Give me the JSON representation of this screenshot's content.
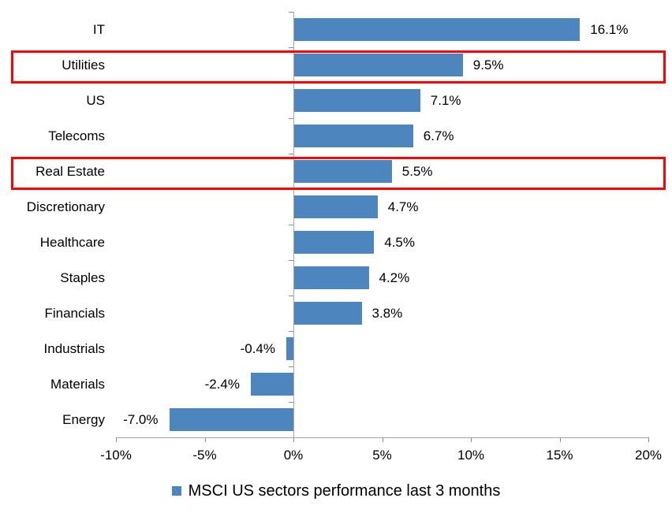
{
  "chart_data": {
    "type": "bar",
    "orientation": "horizontal",
    "title": "",
    "xlabel": "",
    "ylabel": "",
    "categories": [
      "IT",
      "Utilities",
      "US",
      "Telecoms",
      "Real Estate",
      "Discretionary",
      "Healthcare",
      "Staples",
      "Financials",
      "Industrials",
      "Materials",
      "Energy"
    ],
    "values": [
      16.1,
      9.5,
      7.1,
      6.7,
      5.5,
      4.7,
      4.5,
      4.2,
      3.8,
      -0.4,
      -2.4,
      -7.0
    ],
    "data_labels": [
      "16.1%",
      "9.5%",
      "7.1%",
      "6.7%",
      "5.5%",
      "4.7%",
      "4.5%",
      "4.2%",
      "3.8%",
      "-0.4%",
      "-2.4%",
      "-7.0%"
    ],
    "x_ticks": [
      "-10%",
      "-5%",
      "0%",
      "5%",
      "10%",
      "15%",
      "20%"
    ],
    "x_tick_values": [
      -10,
      -5,
      0,
      5,
      10,
      15,
      20
    ],
    "xlim": [
      -10,
      20
    ],
    "grid": false,
    "legend": "MSCI US sectors performance last 3 months",
    "legend_position": "bottom",
    "bar_color": "#4d86bf",
    "axis_color": "#a6a6a6",
    "tick_color": "#8c8c8c",
    "highlight_color": "#ff0000",
    "highlighted_categories": [
      "Utilities",
      "Real Estate"
    ]
  }
}
